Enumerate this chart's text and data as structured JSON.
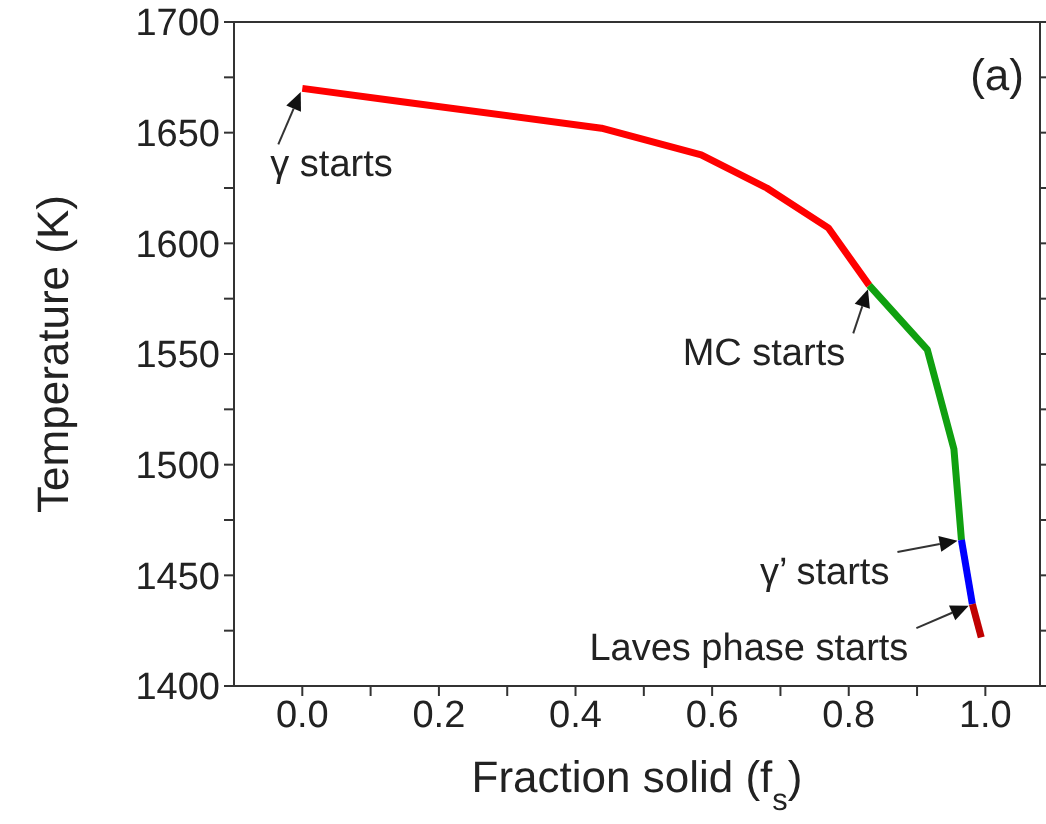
{
  "chart_data": {
    "type": "line",
    "xlabel": "Fraction solid (f$_{s}$)",
    "ylabel": "Temperature (K)",
    "xlim": [
      -0.1,
      1.08
    ],
    "xticks": [
      {
        "value": 0,
        "label": "0.0"
      },
      {
        "value": 0.1,
        "label": null
      },
      {
        "value": 0.2,
        "label": "0.2"
      },
      {
        "value": 0.3,
        "label": null
      },
      {
        "value": 0.4,
        "label": "0.4"
      },
      {
        "value": 0.5,
        "label": null
      },
      {
        "value": 0.6,
        "label": "0.6"
      },
      {
        "value": 0.7,
        "label": null
      },
      {
        "value": 0.8,
        "label": "0.8"
      },
      {
        "value": 0.9,
        "label": null
      },
      {
        "value": 1,
        "label": "1.0"
      }
    ],
    "ylim": [
      1400,
      1700
    ],
    "yticks": [
      1400,
      {
        "value": 1425,
        "label": null
      },
      1450,
      {
        "value": 1475,
        "label": null
      },
      1500,
      {
        "value": 1525,
        "label": null
      },
      1550,
      {
        "value": 1575,
        "label": null
      },
      1600,
      {
        "value": 1625,
        "label": null
      },
      1650,
      {
        "value": 1675,
        "label": null
      },
      1700
    ],
    "series": [
      {
        "color": "#ff0000",
        "x": [
          0,
          0.146,
          0.438,
          0.584,
          0.68,
          0.77,
          0.83
        ],
        "values": [
          1670,
          1664,
          1652,
          1640,
          1625,
          1607,
          1581
        ]
      },
      {
        "color": "#10a010",
        "x": [
          0.83,
          0.915,
          0.954,
          0.965
        ],
        "values": [
          1581,
          1552,
          1507,
          1466
        ]
      },
      {
        "color": "#0000ff",
        "x": [
          0.965,
          0.981
        ],
        "values": [
          1466,
          1437
        ]
      },
      {
        "color": "#c00000",
        "x": [
          0.981,
          0.994
        ],
        "values": [
          1437,
          1422
        ]
      }
    ],
    "annotations": [
      {
        "text": "γ starts",
        "x": 0,
        "y": 1670
      },
      {
        "text": "MC starts",
        "x": 0.83,
        "y": 1581
      },
      {
        "text": "γ’ starts",
        "x": 0.965,
        "y": 1466
      },
      {
        "text": "Laves phase starts",
        "x": 0.981,
        "y": 1437
      },
      "(a)"
    ],
    "tick_labels": "xy"
  }
}
